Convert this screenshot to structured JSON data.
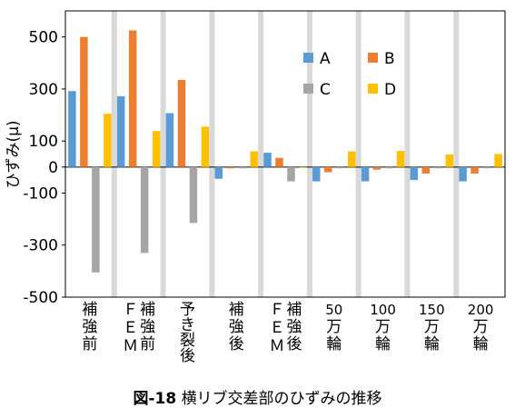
{
  "chart_data": {
    "type": "bar",
    "ylabel": "ひずみ(μ)",
    "ylim": [
      -500,
      600
    ],
    "yticks": [
      500,
      300,
      100,
      0,
      -100,
      -300,
      -500
    ],
    "ytick_labels": [
      "500",
      "300",
      "100",
      "0",
      "-100",
      "-300",
      "-500"
    ],
    "categories": [
      "補強前",
      "FEM補強前",
      "予き裂後",
      "補強後",
      "FEM補強後",
      "50万輪",
      "100万輪",
      "150万輪",
      "200万輪"
    ],
    "category_label_lines": [
      [
        "補",
        "強",
        "前"
      ],
      [
        "ＦＥＭ",
        "補強前"
      ],
      [
        "予",
        "き",
        "裂",
        "後"
      ],
      [
        "補",
        "強",
        "後"
      ],
      [
        "ＦＥＭ",
        "補強後"
      ],
      [
        "50",
        "万",
        "輪"
      ],
      [
        "100",
        "万",
        "輪"
      ],
      [
        "150",
        "万",
        "輪"
      ],
      [
        "200",
        "万",
        "輪"
      ]
    ],
    "series": [
      {
        "name": "A",
        "color": "#5b9bd5",
        "values": [
          292,
          272,
          207,
          -45,
          55,
          -55,
          -55,
          -50,
          -55
        ]
      },
      {
        "name": "B",
        "color": "#ed7d31",
        "values": [
          500,
          525,
          335,
          -5,
          35,
          -20,
          -10,
          -25,
          -25
        ]
      },
      {
        "name": "C",
        "color": "#a5a5a5",
        "values": [
          -405,
          -330,
          -215,
          -5,
          -55,
          -5,
          -5,
          -5,
          -5
        ]
      },
      {
        "name": "D",
        "color": "#ffc000",
        "values": [
          205,
          138,
          155,
          60,
          0,
          60,
          62,
          48,
          50
        ]
      }
    ],
    "legend_position": "top-right",
    "separator_color": "#d9d9d9"
  },
  "caption": {
    "fig_number": "図-18",
    "text": "横リブ交差部のひずみの推移"
  }
}
